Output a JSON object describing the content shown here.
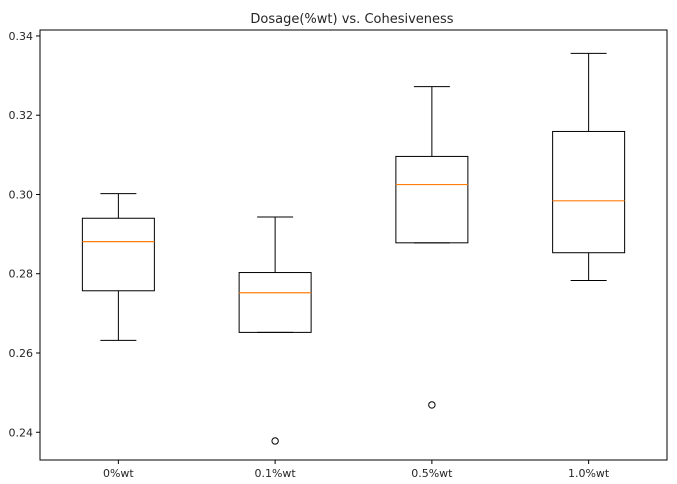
{
  "chart_data": {
    "type": "box",
    "title": "Dosage(%wt) vs. Cohesiveness",
    "xlabel": "",
    "ylabel": "",
    "categories": [
      "0%wt",
      "0.1%wt",
      "0.5%wt",
      "1.0%wt"
    ],
    "ylim": [
      0.233,
      0.3415
    ],
    "yticks": [
      0.24,
      0.26,
      0.28,
      0.3,
      0.32,
      0.34
    ],
    "ytick_labels": [
      "0.24",
      "0.26",
      "0.28",
      "0.30",
      "0.32",
      "0.34"
    ],
    "grid": false,
    "box_color": "#000000",
    "median_color": "#ff7f0e",
    "boxes": [
      {
        "category": "0%wt",
        "whisker_low": 0.2632,
        "q1": 0.2757,
        "median": 0.2881,
        "q3": 0.294,
        "whisker_high": 0.3002,
        "outliers": []
      },
      {
        "category": "0.1%wt",
        "whisker_low": 0.2652,
        "q1": 0.2652,
        "median": 0.2752,
        "q3": 0.2803,
        "whisker_high": 0.2943,
        "outliers": [
          0.2378
        ]
      },
      {
        "category": "0.5%wt",
        "whisker_low": 0.2878,
        "q1": 0.2878,
        "median": 0.3025,
        "q3": 0.3096,
        "whisker_high": 0.3272,
        "outliers": [
          0.2469
        ]
      },
      {
        "category": "1.0%wt",
        "whisker_low": 0.2783,
        "q1": 0.2853,
        "median": 0.2984,
        "q3": 0.3159,
        "whisker_high": 0.3356,
        "outliers": []
      }
    ]
  }
}
